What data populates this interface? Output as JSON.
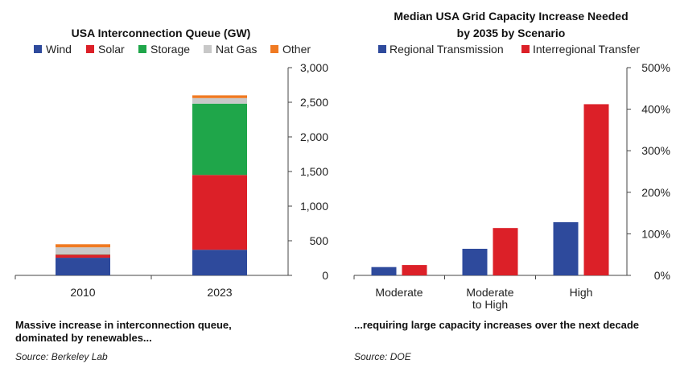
{
  "chart_data": [
    {
      "type": "bar",
      "stacked": true,
      "title": "USA Interconnection Queue (GW)",
      "categories": [
        "2010",
        "2023"
      ],
      "series": [
        {
          "name": "Wind",
          "color": "#2e4a9c",
          "values": [
            255,
            370
          ]
        },
        {
          "name": "Solar",
          "color": "#dc2028",
          "values": [
            45,
            1080
          ]
        },
        {
          "name": "Storage",
          "color": "#1fa64a",
          "values": [
            5,
            1030
          ]
        },
        {
          "name": "Nat Gas",
          "color": "#c8c8c8",
          "values": [
            100,
            80
          ]
        },
        {
          "name": "Other",
          "color": "#f07a22",
          "values": [
            45,
            40
          ]
        }
      ],
      "yticks": [
        "0",
        "500",
        "1,000",
        "1,500",
        "2,000",
        "2,500",
        "3,000"
      ],
      "ylim": [
        0,
        3000
      ],
      "axis_side": "right",
      "caption": "Massive increase in interconnection queue, dominated by renewables...",
      "caption_lines": [
        "Massive increase in interconnection queue,",
        "dominated by renewables..."
      ],
      "source": "Source: Berkeley Lab"
    },
    {
      "type": "bar",
      "stacked": false,
      "title": "Median USA Grid Capacity Increase Needed by 2035 by Scenario",
      "title_lines": [
        "Median USA Grid Capacity Increase Needed",
        "by 2035 by Scenario"
      ],
      "categories": [
        "Moderate",
        "Moderate to High",
        "High"
      ],
      "category_lines": [
        [
          "Moderate"
        ],
        [
          "Moderate",
          "to High"
        ],
        [
          "High"
        ]
      ],
      "series": [
        {
          "name": "Regional Transmission",
          "color": "#2e4a9c",
          "values": [
            20,
            64,
            128
          ]
        },
        {
          "name": "Interregional Transfer",
          "color": "#dc2028",
          "values": [
            25,
            114,
            412
          ]
        }
      ],
      "yticks": [
        "0%",
        "100%",
        "200%",
        "300%",
        "400%",
        "500%"
      ],
      "ylim": [
        0,
        500
      ],
      "axis_side": "right",
      "caption": "...requiring large capacity increases over the next decade",
      "caption_lines": [
        "...requiring large capacity increases over the next decade"
      ],
      "source": "Source: DOE"
    }
  ]
}
